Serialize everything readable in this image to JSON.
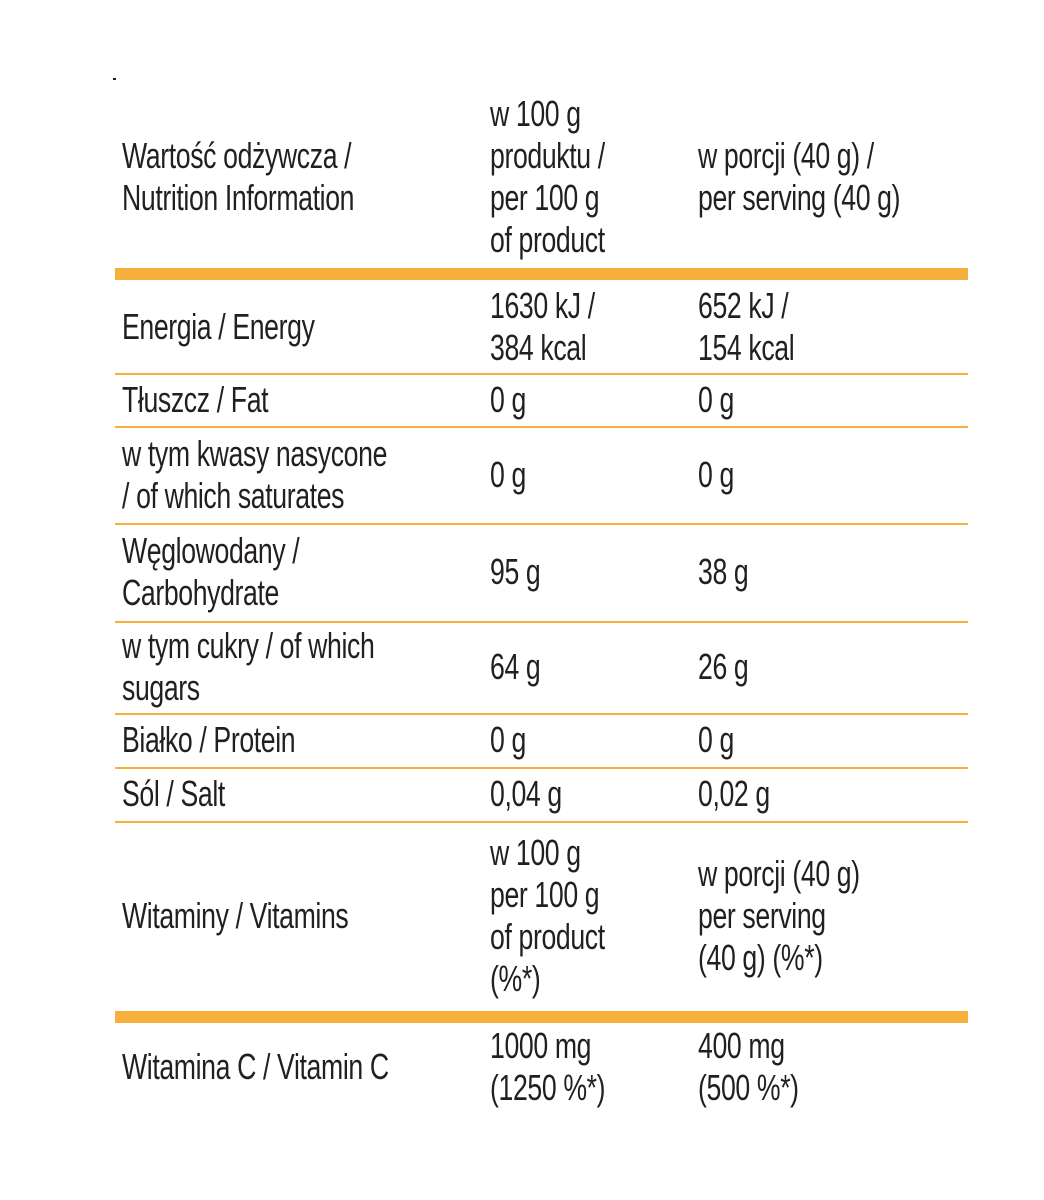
{
  "table": {
    "rows": [
      [
        "Wartość odżywcza /\nNutrition Information",
        "w 100 g\nproduktu /\nper 100 g\nof product",
        "w porcji (40 g) /\nper serving (40 g)"
      ],
      [
        "Energia / Energy",
        "1630 kJ /\n384 kcal",
        "652 kJ /\n154 kcal"
      ],
      [
        "Tłuszcz / Fat",
        "0 g",
        "0 g"
      ],
      [
        "w tym kwasy nasycone\n/ of which saturates",
        "0 g",
        "0 g"
      ],
      [
        "Węglowodany /\nCarbohydrate",
        "95 g",
        "38 g"
      ],
      [
        "w tym cukry / of which\nsugars",
        "64 g",
        "26 g"
      ],
      [
        "Białko / Protein",
        "0 g",
        "0 g"
      ],
      [
        "Sól / Salt",
        "0,04 g",
        "0,02 g"
      ],
      [
        "Witaminy / Vitamins",
        "w 100 g\nper 100 g\nof product\n(%*)",
        "w porcji (40 g)\nper serving\n(40 g) (%*)"
      ],
      [
        "Witamina C / Vitamin C",
        "1000 mg\n(1250 %*)",
        "400 mg\n(500 %*)"
      ]
    ]
  }
}
